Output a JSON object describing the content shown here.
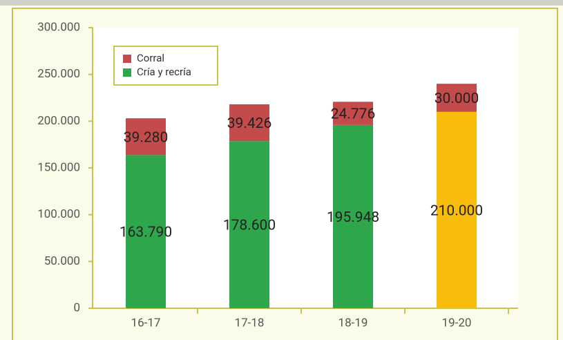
{
  "chart_data": {
    "type": "stacked_bar",
    "categories": [
      "16-17",
      "17-18",
      "18-19",
      "19-20"
    ],
    "series": [
      {
        "name": "Cría y recría",
        "color": "#2ea64b",
        "colors": [
          "#2ea64b",
          "#2ea64b",
          "#2ea64b",
          "#f8bd0c"
        ],
        "values": [
          163790,
          178600,
          195948,
          210000
        ],
        "value_labels": [
          "163.790",
          "178.600",
          "195.948",
          "210.000"
        ]
      },
      {
        "name": "Corral",
        "color": "#c44b4b",
        "values": [
          39280,
          39426,
          24776,
          30000
        ],
        "value_labels": [
          "39.280",
          "39.426",
          "24.776",
          "30.000"
        ]
      }
    ],
    "ylim": [
      0,
      300000
    ],
    "yticks": [
      0,
      {
        "value": 50000,
        "label": "50.000"
      },
      {
        "value": 100000,
        "label": "100.000"
      },
      {
        "value": 150000,
        "label": "150.000"
      },
      {
        "value": 200000,
        "label": "200.000"
      },
      {
        "value": 250000,
        "label": "250.000"
      },
      {
        "value": 300000,
        "label": "300.000"
      }
    ],
    "legend": "upper left"
  }
}
